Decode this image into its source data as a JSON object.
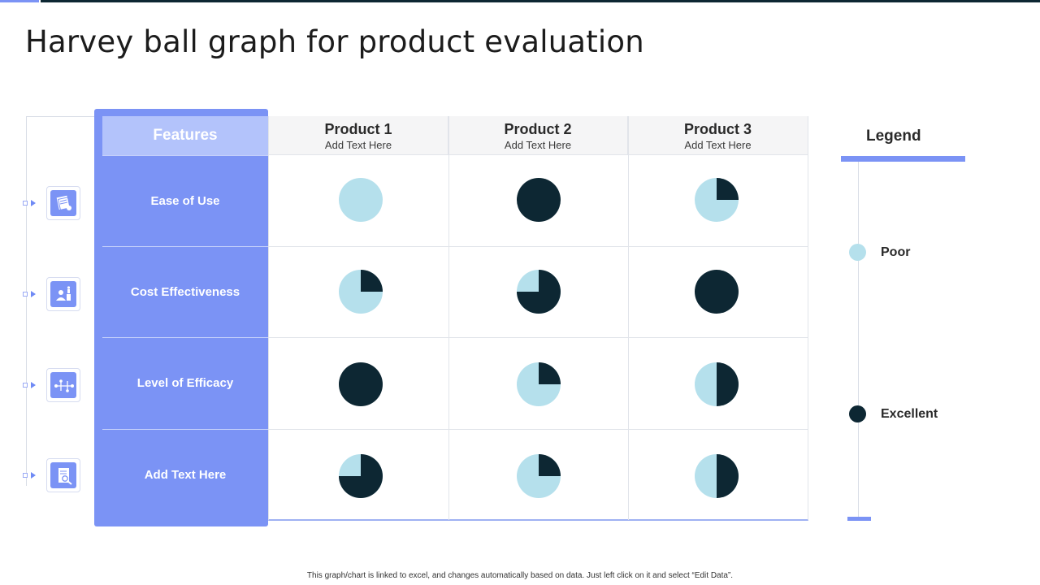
{
  "title": "Harvey ball graph for product evaluation",
  "colors": {
    "accent": "#7b93f5",
    "poor": "#b5e0ec",
    "excellent": "#0d2733",
    "header_light": "#b3c3fb"
  },
  "features_header": "Features",
  "products": [
    {
      "name": "Product 1",
      "sub": "Add Text Here"
    },
    {
      "name": "Product 2",
      "sub": "Add Text Here"
    },
    {
      "name": "Product 3",
      "sub": "Add Text Here"
    }
  ],
  "rows": [
    {
      "label": "Ease of Use",
      "icon": "document-stack-icon",
      "scores": [
        0,
        1,
        0.25
      ]
    },
    {
      "label": "Cost Effectiveness",
      "icon": "person-money-icon",
      "scores": [
        0.25,
        0.75,
        1
      ]
    },
    {
      "label": "Level of Efficacy",
      "icon": "network-nodes-icon",
      "scores": [
        1,
        0.25,
        0.5
      ]
    },
    {
      "label": "Add  Text Here",
      "icon": "clipboard-search-icon",
      "scores": [
        0.75,
        0.25,
        0.5
      ]
    }
  ],
  "legend": {
    "title": "Legend",
    "items": [
      {
        "label": "Poor",
        "level": "poor"
      },
      {
        "label": "Excellent",
        "level": "excellent"
      }
    ]
  },
  "footnote": "This graph/chart is linked to excel, and changes automatically based on data. Just left click on it and select “Edit Data”."
}
